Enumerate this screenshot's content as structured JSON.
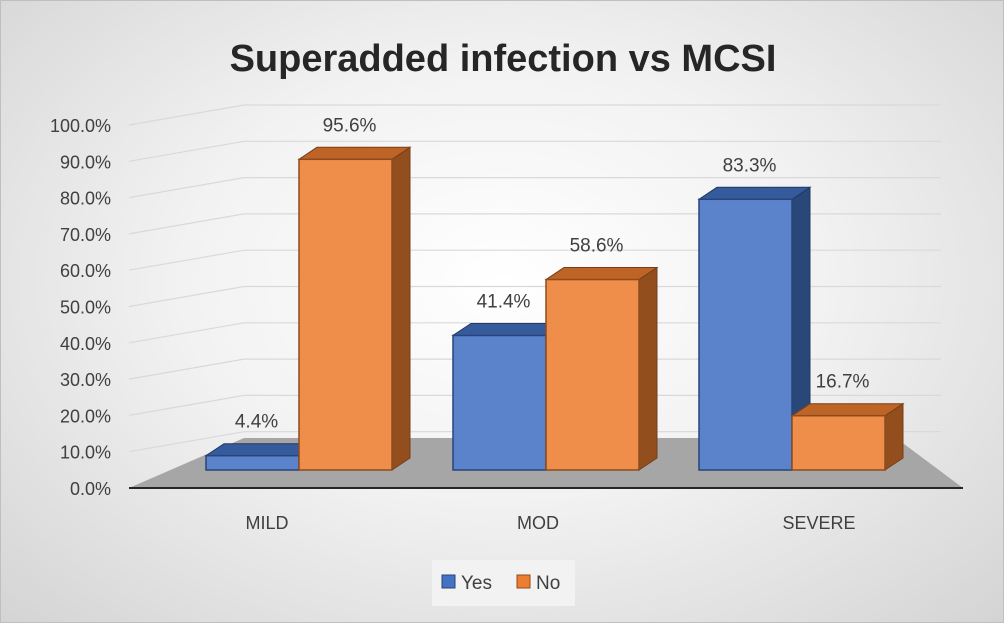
{
  "chart_data": {
    "type": "bar",
    "title": "Superadded infection vs MCSI",
    "categories": [
      "MILD",
      "MOD",
      "SEVERE"
    ],
    "series": [
      {
        "name": "Yes",
        "values": [
          4.4,
          41.4,
          83.3
        ],
        "labels": [
          "4.4%",
          "41.4%",
          "83.3%"
        ],
        "color": "#4472C4"
      },
      {
        "name": "No",
        "values": [
          95.6,
          58.6,
          16.7
        ],
        "labels": [
          "95.6%",
          "58.6%",
          "16.7%"
        ],
        "color": "#ED7D31"
      }
    ],
    "ylim": [
      0,
      100
    ],
    "yticks": [
      "0.0%",
      "10.0%",
      "20.0%",
      "30.0%",
      "40.0%",
      "50.0%",
      "60.0%",
      "70.0%",
      "80.0%",
      "90.0%",
      "100.0%"
    ],
    "xlabel": "",
    "ylabel": "",
    "grid": true,
    "legend_position": "bottom",
    "style": "3d-clustered-column"
  }
}
